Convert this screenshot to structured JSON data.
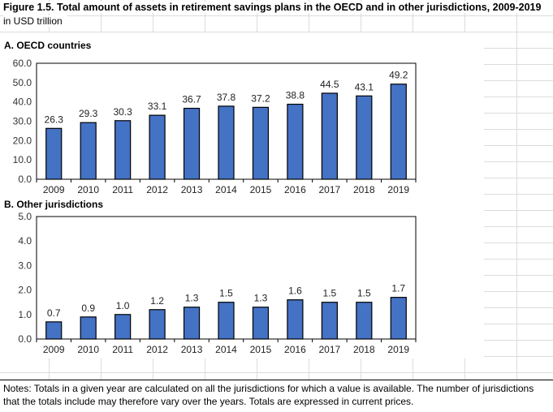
{
  "header": {
    "title": "Figure 1.5. Total amount of assets in retirement savings plans in the OECD and in other jurisdictions, 2009-2019",
    "unit": "in USD trillion"
  },
  "notes": "Notes: Totals in a given year are calculated on all the jurisdictions for which a value is available. The number of jurisdictions that the totals include may therefore vary over the years. Totals are expressed in current prices.",
  "colors": {
    "bar": "#4472c4",
    "bar_stroke": "#000000"
  },
  "chart_data": [
    {
      "type": "bar",
      "title": "A. OECD countries",
      "categories": [
        "2009",
        "2010",
        "2011",
        "2012",
        "2013",
        "2014",
        "2015",
        "2016",
        "2017",
        "2018",
        "2019"
      ],
      "values": [
        26.3,
        29.3,
        30.3,
        33.1,
        36.7,
        37.8,
        37.2,
        38.8,
        44.5,
        43.1,
        49.2
      ],
      "value_labels": [
        "26.3",
        "29.3",
        "30.3",
        "33.1",
        "36.7",
        "37.8",
        "37.2",
        "38.8",
        "44.5",
        "43.1",
        "49.2"
      ],
      "ylim": [
        0,
        60
      ],
      "yticks": [
        "0.0",
        "10.0",
        "20.0",
        "30.0",
        "40.0",
        "50.0",
        "60.0"
      ],
      "xlabel": "",
      "ylabel": ""
    },
    {
      "type": "bar",
      "title": "B. Other jurisdictions",
      "categories": [
        "2009",
        "2010",
        "2011",
        "2012",
        "2013",
        "2014",
        "2015",
        "2016",
        "2017",
        "2018",
        "2019"
      ],
      "values": [
        0.7,
        0.9,
        1.0,
        1.2,
        1.3,
        1.5,
        1.3,
        1.6,
        1.5,
        1.5,
        1.7
      ],
      "value_labels": [
        "0.7",
        "0.9",
        "1.0",
        "1.2",
        "1.3",
        "1.5",
        "1.3",
        "1.6",
        "1.5",
        "1.5",
        "1.7"
      ],
      "ylim": [
        0,
        5
      ],
      "yticks": [
        "0.0",
        "1.0",
        "2.0",
        "3.0",
        "4.0",
        "5.0"
      ],
      "xlabel": "",
      "ylabel": ""
    }
  ]
}
